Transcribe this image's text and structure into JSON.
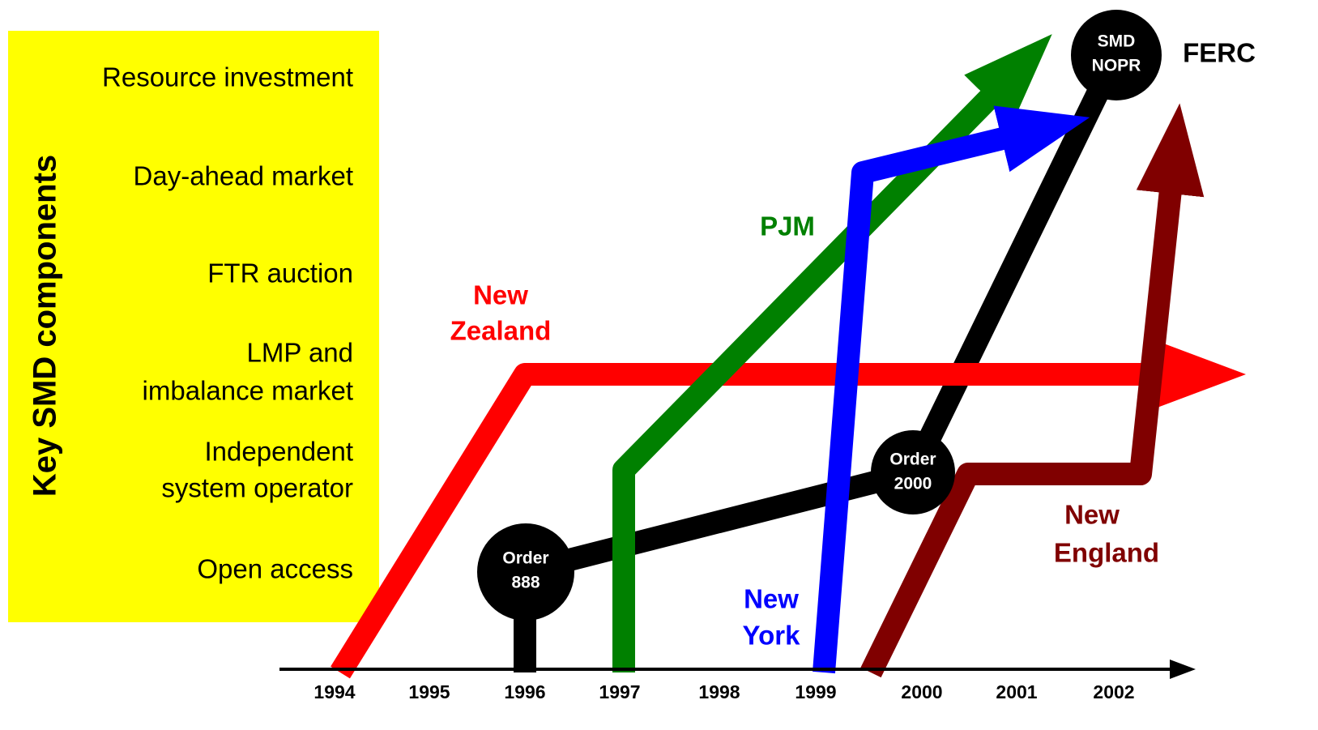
{
  "sidebar": {
    "title": "Key SMD components",
    "components": [
      [
        "Resource investment"
      ],
      [
        "Day-ahead market"
      ],
      [
        "FTR auction"
      ],
      [
        "LMP and",
        "imbalance market"
      ],
      [
        "Independent",
        "system operator"
      ],
      [
        "Open access"
      ]
    ]
  },
  "timeline": {
    "years": [
      "1994",
      "1995",
      "1996",
      "1997",
      "1998",
      "1999",
      "2000",
      "2001",
      "2002"
    ]
  },
  "tracks": {
    "new_zealand": [
      "New",
      "Zealand"
    ],
    "pjm": [
      "PJM"
    ],
    "new_york": [
      "New",
      "York"
    ],
    "new_england": [
      "New",
      "England"
    ],
    "ferc": [
      "FERC"
    ]
  },
  "nodes": {
    "order_888": [
      "Order",
      "888"
    ],
    "order_2000": [
      "Order",
      "2000"
    ],
    "smd_nopr": [
      "SMD",
      "NOPR"
    ]
  }
}
